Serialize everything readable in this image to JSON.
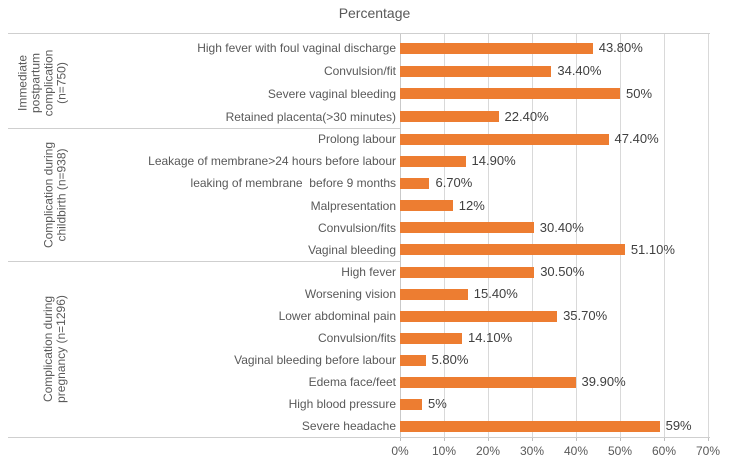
{
  "title": "Percentage",
  "chart_data": {
    "type": "bar",
    "orientation": "horizontal",
    "title": "Percentage",
    "xlabel": "",
    "ylabel": "",
    "x_axis": {
      "min": 0,
      "max": 70,
      "tick_step": 10,
      "tick_labels": [
        "0%",
        "10%",
        "20%",
        "30%",
        "40%",
        "50%",
        "60%",
        "70%"
      ],
      "grid": true
    },
    "bar_color": "#ED7D31",
    "label_color": "#595959",
    "value_label_color": "#404040",
    "gridline_color": "#D9D9D9",
    "legend": "none",
    "groups": [
      {
        "label": "Immediate postpartum complication (n=750)",
        "label_lines": [
          "Immediate",
          "postpartum",
          "complication",
          "(n=750)"
        ],
        "items": [
          {
            "category": "High fever with foul vaginal discharge",
            "value": 43.8,
            "value_label": "43.80%"
          },
          {
            "category": "Convulsion/fit",
            "value": 34.4,
            "value_label": "34.40%"
          },
          {
            "category": "Severe vaginal bleeding",
            "value": 50,
            "value_label": "50%"
          },
          {
            "category": "Retained placenta(>30 minutes)",
            "value": 22.4,
            "value_label": "22.40%"
          }
        ]
      },
      {
        "label": "Complication during childbirth (n=938)",
        "label_lines": [
          "Complication during",
          "childbirth (n=938)"
        ],
        "items": [
          {
            "category": "Prolong labour",
            "value": 47.4,
            "value_label": "47.40%"
          },
          {
            "category": "Leakage of membrane>24 hours before labour",
            "value": 14.9,
            "value_label": "14.90%"
          },
          {
            "category": "leaking of membrane  before 9 months",
            "value": 6.7,
            "value_label": "6.70%"
          },
          {
            "category": "Malpresentation",
            "value": 12,
            "value_label": "12%"
          },
          {
            "category": "Convulsion/fits",
            "value": 30.4,
            "value_label": "30.40%"
          },
          {
            "category": "Vaginal bleeding",
            "value": 51.1,
            "value_label": "51.10%"
          }
        ]
      },
      {
        "label": "Complication during pregnancy (n=1296)",
        "label_lines": [
          "Complication during",
          "pregnancy (n=1296)"
        ],
        "items": [
          {
            "category": "High fever",
            "value": 30.5,
            "value_label": "30.50%"
          },
          {
            "category": "Worsening vision",
            "value": 15.4,
            "value_label": "15.40%"
          },
          {
            "category": "Lower abdominal pain",
            "value": 35.7,
            "value_label": "35.70%"
          },
          {
            "category": "Convulsion/fits",
            "value": 14.1,
            "value_label": "14.10%"
          },
          {
            "category": "Vaginal bleeding before labour",
            "value": 5.8,
            "value_label": "5.80%"
          },
          {
            "category": "Edema face/feet",
            "value": 39.9,
            "value_label": "39.90%"
          },
          {
            "category": "High blood pressure",
            "value": 5,
            "value_label": "5%"
          },
          {
            "category": "Severe headache",
            "value": 59,
            "value_label": "59%"
          }
        ]
      }
    ]
  }
}
